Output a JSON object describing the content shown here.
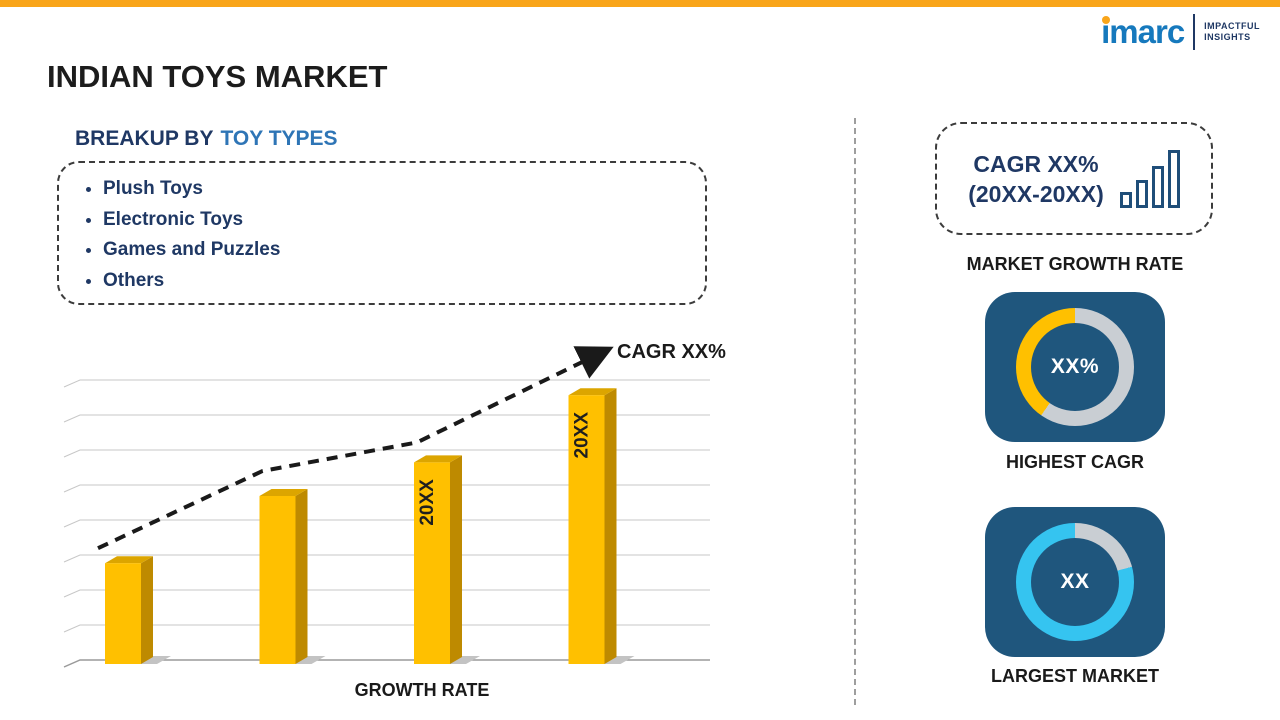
{
  "page": {
    "title": "INDIAN TOYS MARKET"
  },
  "logo": {
    "brand": "imarc",
    "tagline1": "IMPACTFUL",
    "tagline2": "INSIGHTS"
  },
  "colors": {
    "accent_orange": "#F9A51A",
    "navy": "#1F3864",
    "blue": "#2E75B6",
    "bar_gold": "#FFC000",
    "tile_blue": "#1F567D",
    "donut_gray": "#C9CED3",
    "donut_cyan": "#35C4F0",
    "logo_blue": "#1679BD"
  },
  "breakup": {
    "heading_prefix": "BREAKUP BY",
    "heading_highlight": "TOY TYPES",
    "items": [
      {
        "label": "Plush Toys"
      },
      {
        "label": "Electronic Toys"
      },
      {
        "label": "Games and Puzzles"
      },
      {
        "label": "Others"
      }
    ]
  },
  "chart_data": [
    {
      "type": "bar",
      "title": "",
      "categories": [
        "",
        "",
        "20XX",
        "20XX"
      ],
      "values": [
        36,
        60,
        72,
        96
      ],
      "ylim": [
        0,
        100
      ],
      "xlabel": "GROWTH RATE",
      "ylabel": "",
      "grid": true,
      "legend": false,
      "bar_color": "#FFC000",
      "trend_label": "CAGR XX%"
    },
    {
      "type": "pie",
      "subtype": "donut",
      "label": "HIGHEST CAGR",
      "center_text": "XX%",
      "fill_color": "#FFC000",
      "rest_color": "#C9CED3",
      "fill_start_deg": 215,
      "fill_end_deg": 360
    },
    {
      "type": "pie",
      "subtype": "donut",
      "label": "LARGEST MARKET",
      "center_text": "XX",
      "fill_color": "#35C4F0",
      "rest_color": "#C9CED3",
      "fill_start_deg": 75,
      "fill_end_deg": 360
    }
  ],
  "right_panel": {
    "growth_box": {
      "line1": "CAGR XX%",
      "line2": "(20XX-20XX)"
    },
    "growth_box_label": "MARKET GROWTH RATE"
  }
}
